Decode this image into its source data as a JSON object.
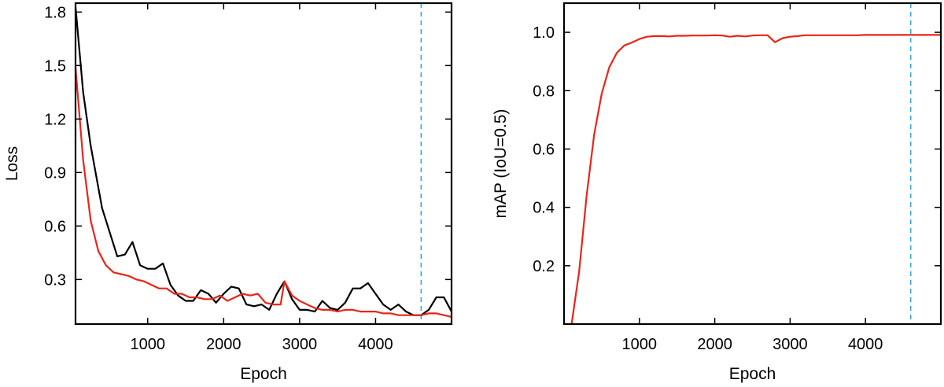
{
  "chart_data": [
    {
      "type": "line",
      "xlabel": "Epoch",
      "ylabel": "Loss",
      "xlim": [
        50,
        5000
      ],
      "ylim": [
        0.05,
        1.85
      ],
      "xticks": [
        1000,
        2000,
        3000,
        4000
      ],
      "xtick_labels": [
        "1000",
        "2000",
        "3000",
        "4000"
      ],
      "yticks": [
        0.3,
        0.6,
        0.9,
        1.2,
        1.5,
        1.8
      ],
      "ytick_labels": [
        "0.3",
        "0.6",
        "0.9",
        "1.2",
        "1.5",
        "1.8"
      ],
      "grid": false,
      "vline_x": 4600,
      "series": [
        {
          "color": "#000000",
          "x": [
            50,
            150,
            250,
            400,
            600,
            700,
            800,
            900,
            1000,
            1100,
            1200,
            1300,
            1400,
            1500,
            1600,
            1700,
            1800,
            1900,
            2000,
            2100,
            2200,
            2300,
            2400,
            2500,
            2600,
            2700,
            2800,
            2900,
            3000,
            3100,
            3200,
            3300,
            3400,
            3500,
            3600,
            3700,
            3800,
            3900,
            4000,
            4100,
            4200,
            4300,
            4400,
            4500,
            4600,
            4700,
            4800,
            4900,
            5000
          ],
          "y": [
            1.83,
            1.35,
            1.05,
            0.7,
            0.43,
            0.44,
            0.51,
            0.38,
            0.36,
            0.36,
            0.39,
            0.27,
            0.21,
            0.18,
            0.18,
            0.24,
            0.22,
            0.17,
            0.22,
            0.26,
            0.25,
            0.16,
            0.15,
            0.16,
            0.13,
            0.22,
            0.29,
            0.19,
            0.13,
            0.13,
            0.12,
            0.18,
            0.14,
            0.13,
            0.17,
            0.25,
            0.25,
            0.28,
            0.22,
            0.16,
            0.13,
            0.16,
            0.12,
            0.1,
            0.1,
            0.13,
            0.2,
            0.2,
            0.12
          ]
        },
        {
          "color": "#e8251a",
          "x": [
            50,
            150,
            250,
            350,
            450,
            550,
            650,
            750,
            850,
            950,
            1050,
            1150,
            1250,
            1350,
            1450,
            1550,
            1650,
            1750,
            1850,
            1950,
            2050,
            2150,
            2250,
            2350,
            2450,
            2550,
            2650,
            2750,
            2800,
            2900,
            3000,
            3100,
            3200,
            3300,
            3400,
            3500,
            3600,
            3700,
            3800,
            3900,
            4000,
            4100,
            4200,
            4300,
            4400,
            4500,
            4600,
            4700,
            4800,
            4900,
            5000
          ],
          "y": [
            1.49,
            0.97,
            0.63,
            0.46,
            0.38,
            0.34,
            0.33,
            0.32,
            0.3,
            0.29,
            0.27,
            0.25,
            0.25,
            0.22,
            0.22,
            0.2,
            0.2,
            0.19,
            0.19,
            0.21,
            0.18,
            0.2,
            0.22,
            0.21,
            0.22,
            0.17,
            0.16,
            0.16,
            0.29,
            0.21,
            0.18,
            0.16,
            0.14,
            0.13,
            0.13,
            0.12,
            0.13,
            0.13,
            0.12,
            0.12,
            0.12,
            0.11,
            0.11,
            0.1,
            0.1,
            0.1,
            0.1,
            0.11,
            0.11,
            0.1,
            0.09
          ]
        }
      ]
    },
    {
      "type": "line",
      "xlabel": "Epoch",
      "ylabel": "mAP (IoU=0.5)",
      "xlim": [
        0,
        5000
      ],
      "ylim": [
        0.0,
        1.1
      ],
      "xticks": [
        1000,
        2000,
        3000,
        4000
      ],
      "xtick_labels": [
        "1000",
        "2000",
        "3000",
        "4000"
      ],
      "yticks": [
        0.2,
        0.4,
        0.6,
        0.8,
        1.0
      ],
      "ytick_labels": [
        "0.2",
        "0.4",
        "0.6",
        "0.8",
        "1.0"
      ],
      "grid": false,
      "vline_x": 4600,
      "series": [
        {
          "color": "#e8251a",
          "x": [
            100,
            200,
            300,
            400,
            500,
            600,
            700,
            800,
            900,
            1000,
            1100,
            1200,
            1300,
            1400,
            1500,
            1600,
            1700,
            1800,
            1900,
            2000,
            2100,
            2200,
            2300,
            2400,
            2500,
            2600,
            2700,
            2750,
            2800,
            2900,
            3000,
            3100,
            3200,
            3300,
            3400,
            3500,
            3600,
            3700,
            3800,
            3900,
            4000,
            4200,
            4400,
            4600,
            4800,
            5000
          ],
          "y": [
            0.0,
            0.18,
            0.44,
            0.65,
            0.79,
            0.88,
            0.93,
            0.955,
            0.965,
            0.977,
            0.985,
            0.987,
            0.987,
            0.986,
            0.988,
            0.988,
            0.989,
            0.989,
            0.989,
            0.99,
            0.989,
            0.985,
            0.988,
            0.986,
            0.989,
            0.99,
            0.99,
            0.978,
            0.966,
            0.98,
            0.985,
            0.987,
            0.99,
            0.99,
            0.99,
            0.99,
            0.99,
            0.99,
            0.99,
            0.99,
            0.991,
            0.991,
            0.991,
            0.991,
            0.991,
            0.991
          ]
        }
      ]
    }
  ]
}
